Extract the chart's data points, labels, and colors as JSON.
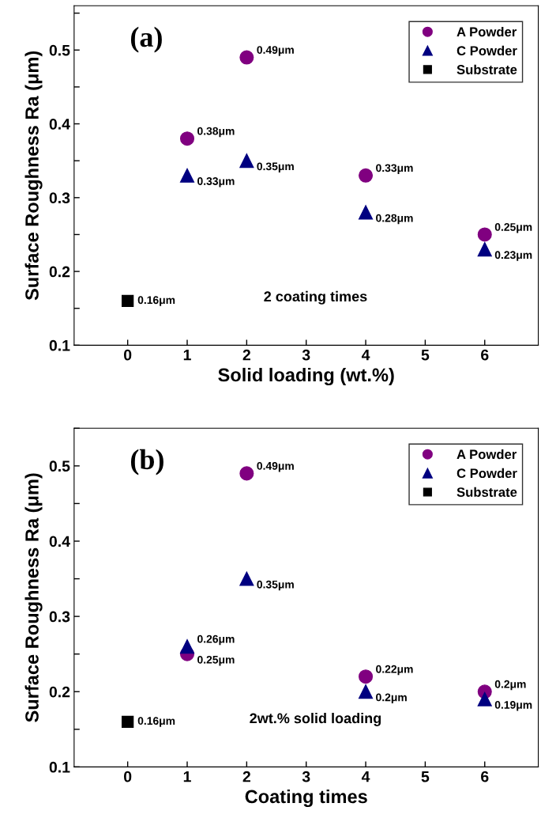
{
  "chart_data": [
    {
      "type": "scatter",
      "title": "(a)",
      "xlabel": "Solid loading (wt.%)",
      "ylabel": "Surface Roughness Ra (μm)",
      "annotations": [
        "2 coating times"
      ],
      "xlim": [
        -0.9,
        6.9
      ],
      "xticks": [
        0,
        1,
        2,
        3,
        4,
        5,
        6
      ],
      "ylim": [
        0.1,
        0.56
      ],
      "yticks": [
        0.1,
        {
          "value": 0.15,
          "label": null
        },
        0.2,
        {
          "value": 0.25,
          "label": null
        },
        0.3,
        {
          "value": 0.35,
          "label": null
        },
        0.4,
        {
          "value": 0.45,
          "label": null
        },
        0.5,
        {
          "value": 0.55,
          "label": null
        }
      ],
      "legend": "top right",
      "grid": false,
      "series": [
        {
          "name": "A Powder",
          "color": "#800080",
          "marker": "circle",
          "x": [
            1,
            2,
            4,
            6
          ],
          "values": [
            0.38,
            0.49,
            0.33,
            0.25
          ],
          "value_labels": [
            "0.38μm",
            "0.49μm",
            "0.33μm",
            "0.25μm"
          ]
        },
        {
          "name": "C Powder",
          "color": "#000080",
          "marker": "triangle",
          "x": [
            1,
            2,
            4,
            6
          ],
          "values": [
            0.33,
            0.35,
            0.28,
            0.23
          ],
          "value_labels": [
            "0.33μm",
            "0.35μm",
            "0.28μm",
            "0.23μm"
          ]
        },
        {
          "name": "Substrate",
          "color": "#000000",
          "marker": "square",
          "x": [
            0
          ],
          "values": [
            0.16
          ],
          "value_labels": [
            "0.16μm"
          ]
        }
      ]
    },
    {
      "type": "scatter",
      "title": "(b)",
      "xlabel": "Coating times",
      "ylabel": "Surface Roughness Ra (μm)",
      "annotations": [
        "2wt.% solid loading"
      ],
      "xlim": [
        -0.9,
        6.9
      ],
      "xticks": [
        0,
        1,
        2,
        3,
        4,
        5,
        6
      ],
      "ylim": [
        0.1,
        0.55
      ],
      "yticks": [
        0.1,
        {
          "value": 0.15,
          "label": null
        },
        0.2,
        {
          "value": 0.25,
          "label": null
        },
        0.3,
        {
          "value": 0.35,
          "label": null
        },
        0.4,
        {
          "value": 0.45,
          "label": null
        },
        0.5,
        {
          "value": 0.55,
          "label": null
        }
      ],
      "legend": "top right",
      "grid": false,
      "series": [
        {
          "name": "A Powder",
          "color": "#800080",
          "marker": "circle",
          "x": [
            1,
            2,
            4,
            6
          ],
          "values": [
            0.25,
            0.49,
            0.22,
            0.2
          ],
          "value_labels": [
            "0.25μm",
            "0.49μm",
            "0.22μm",
            "0.2μm"
          ]
        },
        {
          "name": "C Powder",
          "color": "#000080",
          "marker": "triangle",
          "x": [
            1,
            2,
            4,
            6
          ],
          "values": [
            0.26,
            0.35,
            0.2,
            0.19
          ],
          "value_labels": [
            "0.26μm",
            "0.35μm",
            "0.2μm",
            "0.19μm"
          ]
        },
        {
          "name": "Substrate",
          "color": "#000000",
          "marker": "square",
          "x": [
            0
          ],
          "values": [
            0.16
          ],
          "value_labels": [
            "0.16μm"
          ]
        }
      ]
    }
  ]
}
